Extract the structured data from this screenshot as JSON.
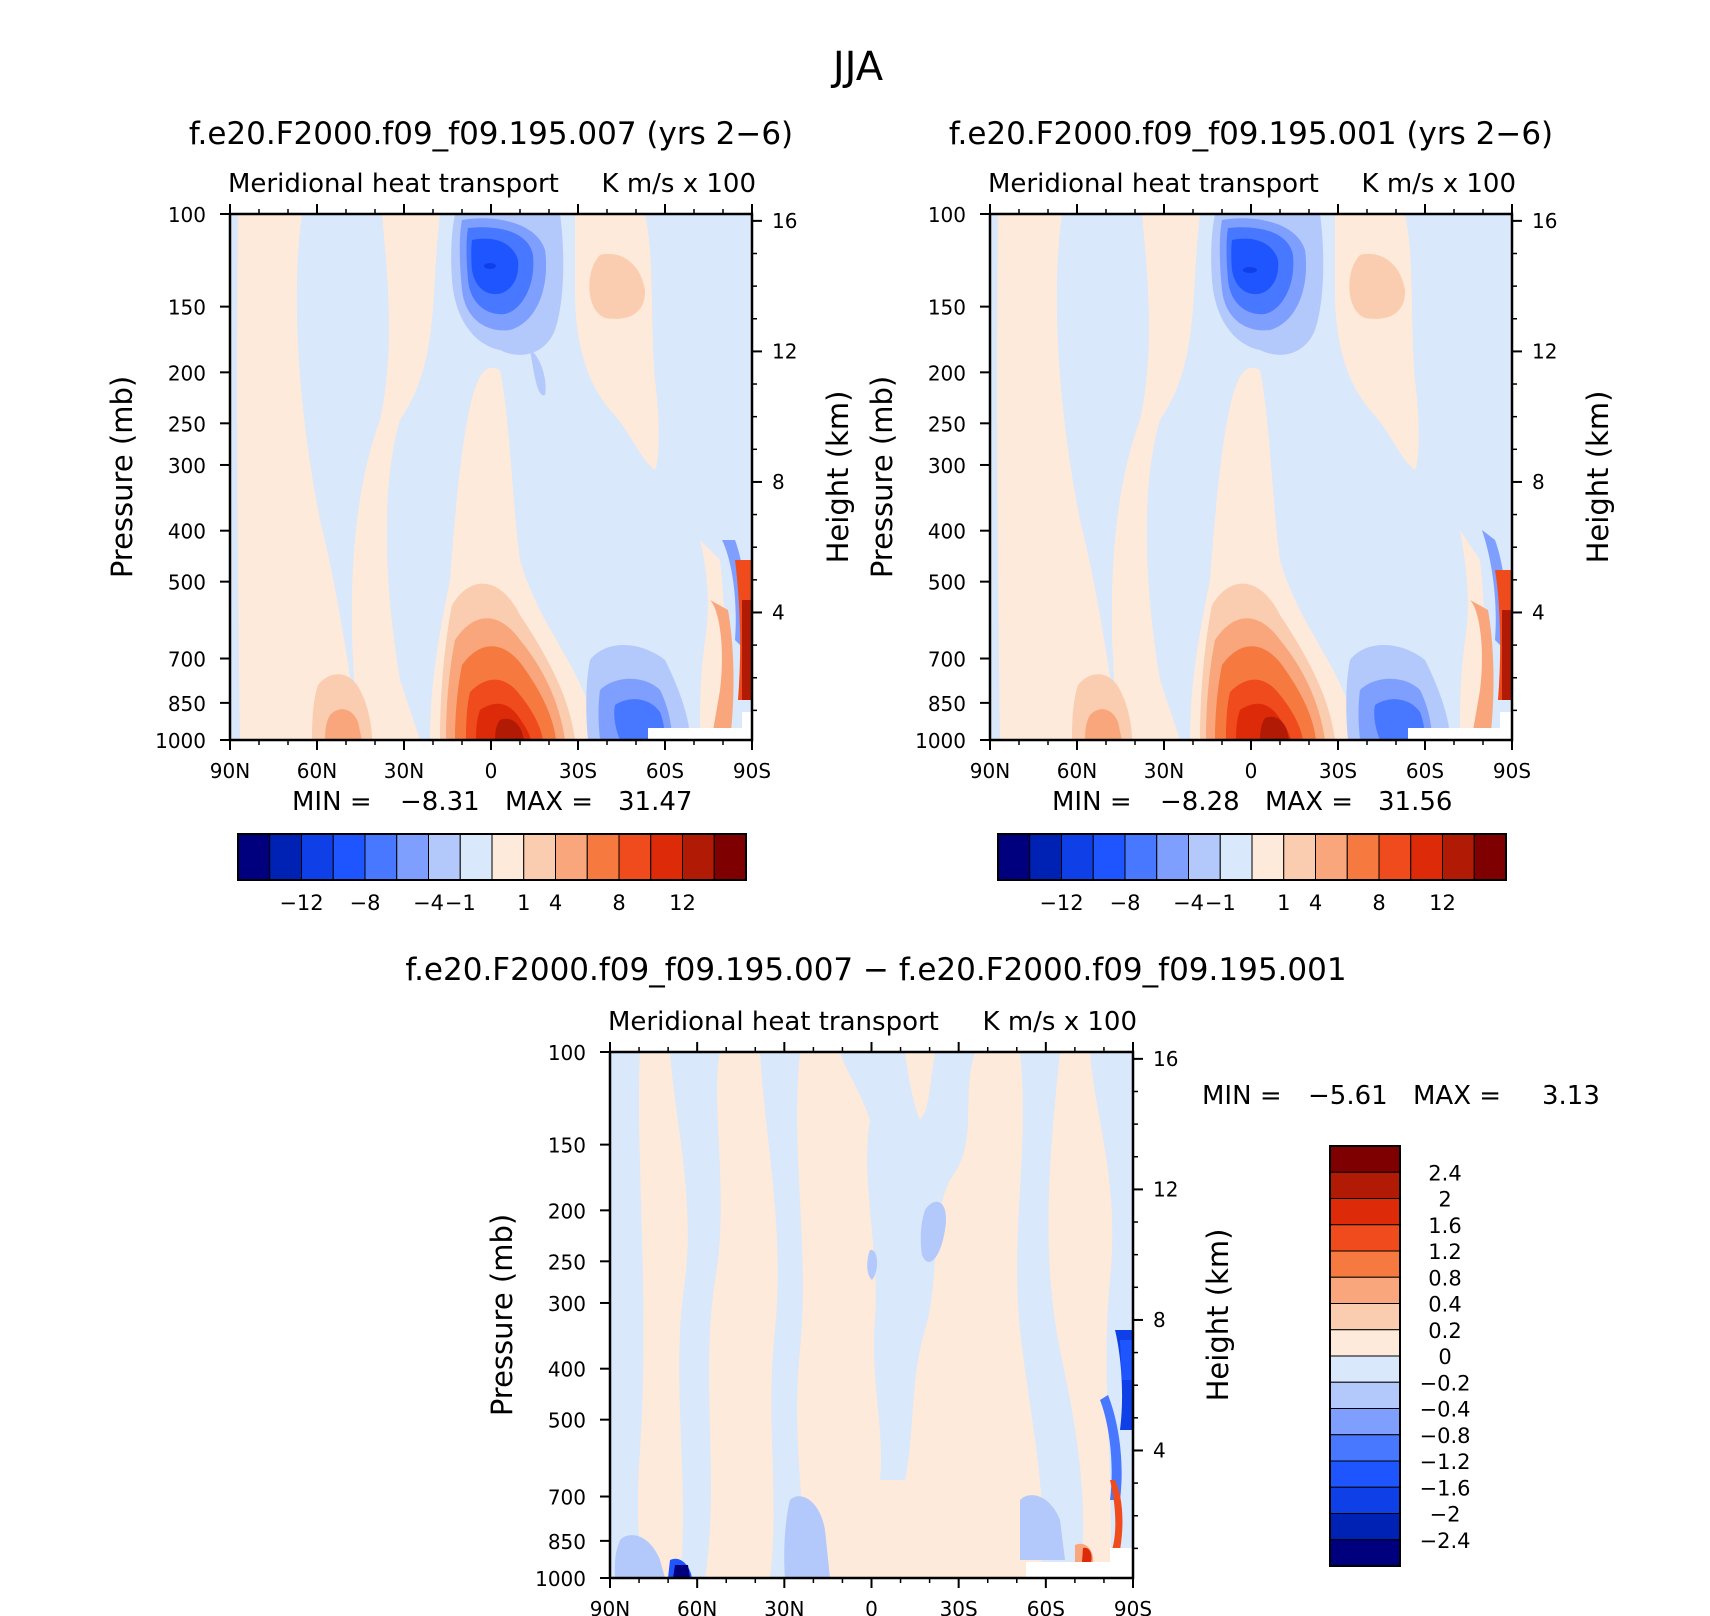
{
  "page_title": "JJA",
  "tick_labels": {
    "pressure": [
      "100",
      "150",
      "200",
      "250",
      "300",
      "400",
      "500",
      "700",
      "850",
      "1000"
    ],
    "height": [
      "16",
      "12",
      "8",
      "4"
    ],
    "latitude": [
      "90N",
      "60N",
      "30N",
      "0",
      "30S",
      "60S",
      "90S"
    ]
  },
  "panels": [
    {
      "title": "f.e20.F2000.f09_f09.195.007 (yrs 2−6)",
      "left_label": "Meridional heat transport",
      "right_label": "K m/s x 100",
      "ylabel": "Pressure (mb)",
      "y2label": "Height (km)",
      "stats": {
        "min_label": "MIN =",
        "min_value": "−8.31",
        "max_label": "MAX =",
        "max_value": "31.47"
      }
    },
    {
      "title": "f.e20.F2000.f09_f09.195.001 (yrs 2−6)",
      "left_label": "Meridional heat transport",
      "right_label": "K m/s x 100",
      "ylabel": "Pressure (mb)",
      "y2label": "Height (km)",
      "stats": {
        "min_label": "MIN =",
        "min_value": "−8.28",
        "max_label": "MAX =",
        "max_value": "31.56"
      }
    },
    {
      "title": "f.e20.F2000.f09_f09.195.007 − f.e20.F2000.f09_f09.195.001",
      "left_label": "Meridional heat transport",
      "right_label": "K m/s x 100",
      "ylabel": "Pressure (mb)",
      "y2label": "Height (km)",
      "stats": {
        "min_label": "MIN =",
        "min_value": "−5.61",
        "max_label": "MAX =",
        "max_value": "3.13"
      }
    }
  ],
  "colorbars": {
    "main": {
      "colors": [
        "#00007f",
        "#0022b4",
        "#0f3fe6",
        "#1f55ff",
        "#4778ff",
        "#7f9fff",
        "#b3c8fb",
        "#d9e8fa",
        "#feeadb",
        "#fbcdb0",
        "#f9a67d",
        "#f6793f",
        "#f04b1c",
        "#dd2a09",
        "#b11b05",
        "#7f0000"
      ],
      "labels": [
        "−12",
        "−8",
        "−4",
        "−1",
        "1",
        "4",
        "8",
        "12"
      ]
    },
    "diff": {
      "colors_top_to_bottom": [
        "#7f0000",
        "#b11b05",
        "#dd2a09",
        "#f04b1c",
        "#f6793f",
        "#f9a67d",
        "#fbcdb0",
        "#feeadb",
        "#d9e8fa",
        "#b3c8fb",
        "#7f9fff",
        "#4778ff",
        "#1f55ff",
        "#0f3fe6",
        "#0022b4",
        "#00007f"
      ],
      "labels_top_to_bottom": [
        "2.4",
        "2",
        "1.6",
        "1.2",
        "0.8",
        "0.4",
        "0.2",
        "0",
        "−0.2",
        "−0.4",
        "−0.8",
        "−1.2",
        "−1.6",
        "−2",
        "−2.4"
      ]
    }
  },
  "chart_data": [
    {
      "type": "heatmap",
      "title": "f.e20.F2000.f09_f09.195.007 (yrs 2−6)",
      "xlabel": "",
      "ylabel": "Pressure (mb)",
      "y2label": "Height (km)",
      "units": "K m/s x 100",
      "x_ticks": [
        "90N",
        "60N",
        "30N",
        "0",
        "30S",
        "60S",
        "90S"
      ],
      "x_range_deg": [
        90,
        -90
      ],
      "y_ticks_mb": [
        100,
        150,
        200,
        250,
        300,
        400,
        500,
        700,
        850,
        1000
      ],
      "y_range_mb": [
        100,
        1000
      ],
      "y2_ticks_km": [
        16,
        12,
        8,
        4
      ],
      "min": -8.31,
      "max": 31.47,
      "contour_levels": [
        -12,
        -8,
        -4,
        -1,
        1,
        4,
        8,
        12
      ],
      "features": [
        {
          "lat": 0,
          "p": 1000,
          "value": 12,
          "sign": "positive",
          "note": "max near surface equator"
        },
        {
          "lat": 5,
          "p": 200,
          "value": -8,
          "sign": "negative"
        },
        {
          "lat": -40,
          "p": 220,
          "value": 2,
          "sign": "positive"
        },
        {
          "lat": -50,
          "p": 980,
          "value": -4,
          "sign": "negative"
        },
        {
          "lat": 52,
          "p": 990,
          "value": 3,
          "sign": "positive"
        }
      ]
    },
    {
      "type": "heatmap",
      "title": "f.e20.F2000.f09_f09.195.001 (yrs 2−6)",
      "xlabel": "",
      "ylabel": "Pressure (mb)",
      "y2label": "Height (km)",
      "units": "K m/s x 100",
      "x_ticks": [
        "90N",
        "60N",
        "30N",
        "0",
        "30S",
        "60S",
        "90S"
      ],
      "x_range_deg": [
        90,
        -90
      ],
      "y_ticks_mb": [
        100,
        150,
        200,
        250,
        300,
        400,
        500,
        700,
        850,
        1000
      ],
      "y_range_mb": [
        100,
        1000
      ],
      "y2_ticks_km": [
        16,
        12,
        8,
        4
      ],
      "min": -8.28,
      "max": 31.56,
      "contour_levels": [
        -12,
        -8,
        -4,
        -1,
        1,
        4,
        8,
        12
      ],
      "features": [
        {
          "lat": 0,
          "p": 1000,
          "value": 12,
          "sign": "positive"
        },
        {
          "lat": 5,
          "p": 200,
          "value": -8,
          "sign": "negative"
        },
        {
          "lat": -40,
          "p": 220,
          "value": 2,
          "sign": "positive"
        },
        {
          "lat": -50,
          "p": 980,
          "value": -4,
          "sign": "negative"
        },
        {
          "lat": 52,
          "p": 990,
          "value": 3,
          "sign": "positive"
        }
      ]
    },
    {
      "type": "heatmap",
      "title": "f.e20.F2000.f09_f09.195.007 − f.e20.F2000.f09_f09.195.001",
      "xlabel": "",
      "ylabel": "Pressure (mb)",
      "y2label": "Height (km)",
      "units": "K m/s x 100",
      "x_ticks": [
        "90N",
        "60N",
        "30N",
        "0",
        "30S",
        "60S",
        "90S"
      ],
      "x_range_deg": [
        90,
        -90
      ],
      "y_ticks_mb": [
        100,
        150,
        200,
        250,
        300,
        400,
        500,
        700,
        850,
        1000
      ],
      "y_range_mb": [
        100,
        1000
      ],
      "y2_ticks_km": [
        16,
        12,
        8,
        4
      ],
      "min": -5.61,
      "max": 3.13,
      "contour_levels": [
        -2.4,
        -2,
        -1.6,
        -1.2,
        -0.8,
        -0.4,
        -0.2,
        0,
        0.2,
        0.4,
        0.8,
        1.2,
        1.6,
        2,
        2.4
      ],
      "legend_placement": "right"
    }
  ]
}
